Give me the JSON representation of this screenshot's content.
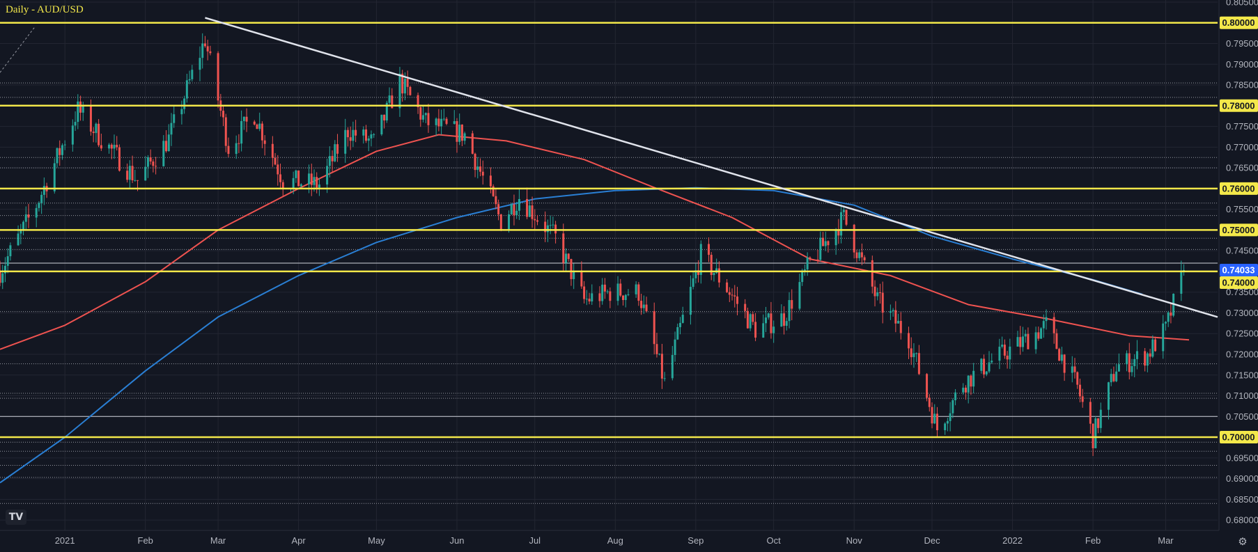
{
  "chart_data": {
    "type": "candlestick",
    "title": "Daily - AUD/USD",
    "ylim": [
      0.6775,
      0.8055
    ],
    "xlim": [
      "2020-12-07",
      "2022-03-21"
    ],
    "y_ticks": [
      "0.80500",
      "0.80000",
      "0.79500",
      "0.79000",
      "0.78500",
      "0.78000",
      "0.77500",
      "0.77000",
      "0.76500",
      "0.76000",
      "0.75500",
      "0.75000",
      "0.74500",
      "0.74000",
      "0.73500",
      "0.73000",
      "0.72500",
      "0.72000",
      "0.71500",
      "0.71000",
      "0.70500",
      "0.70000",
      "0.69500",
      "0.69000",
      "0.68500",
      "0.68000"
    ],
    "x_ticks": [
      {
        "label": "2021",
        "date": "2021-01-01"
      },
      {
        "label": "Feb",
        "date": "2021-02-01"
      },
      {
        "label": "Mar",
        "date": "2021-03-01"
      },
      {
        "label": "Apr",
        "date": "2021-04-01"
      },
      {
        "label": "May",
        "date": "2021-05-01"
      },
      {
        "label": "Jun",
        "date": "2021-06-01"
      },
      {
        "label": "Jul",
        "date": "2021-07-01"
      },
      {
        "label": "Aug",
        "date": "2021-08-01"
      },
      {
        "label": "Sep",
        "date": "2021-09-01"
      },
      {
        "label": "Oct",
        "date": "2021-10-01"
      },
      {
        "label": "Nov",
        "date": "2021-11-01"
      },
      {
        "label": "Dec",
        "date": "2021-12-01"
      },
      {
        "label": "2022",
        "date": "2022-01-01"
      },
      {
        "label": "Feb",
        "date": "2022-02-01"
      },
      {
        "label": "Mar",
        "date": "2022-03-01"
      }
    ],
    "horizontal_levels": [
      {
        "value": 0.8,
        "label": "0.80000",
        "style": "yellow"
      },
      {
        "value": 0.78,
        "label": "0.78000",
        "style": "yellow"
      },
      {
        "value": 0.76,
        "label": "0.76000",
        "style": "yellow"
      },
      {
        "value": 0.75,
        "label": "0.75000",
        "style": "yellow"
      },
      {
        "value": 0.74,
        "label": "0.74000",
        "style": "yellow"
      },
      {
        "value": 0.7,
        "label": "0.70000",
        "style": "yellow"
      }
    ],
    "white_levels": [
      0.742,
      0.705
    ],
    "dotted_levels": [
      0.7855,
      0.782,
      0.7675,
      0.765,
      0.7565,
      0.7535,
      0.748,
      0.7453,
      0.7303,
      0.7177,
      0.7106,
      0.7094,
      0.6988,
      0.6966,
      0.6932,
      0.6903,
      0.684
    ],
    "current_price": {
      "value": 0.74033,
      "label": "0.74033"
    },
    "trendline": {
      "start": {
        "date": "2021-02-24",
        "value": 0.8012
      },
      "end": {
        "date": "2022-03-21",
        "value": 0.729
      }
    },
    "close_series": [
      {
        "date": "2020-12-07",
        "value": 0.74
      },
      {
        "date": "2020-12-21",
        "value": 0.756
      },
      {
        "date": "2021-01-06",
        "value": 0.779
      },
      {
        "date": "2021-01-15",
        "value": 0.772
      },
      {
        "date": "2021-01-29",
        "value": 0.762
      },
      {
        "date": "2021-02-10",
        "value": 0.772
      },
      {
        "date": "2021-02-24",
        "value": 0.796
      },
      {
        "date": "2021-03-05",
        "value": 0.77
      },
      {
        "date": "2021-03-15",
        "value": 0.778
      },
      {
        "date": "2021-03-26",
        "value": 0.762
      },
      {
        "date": "2021-04-09",
        "value": 0.761
      },
      {
        "date": "2021-04-20",
        "value": 0.774
      },
      {
        "date": "2021-04-30",
        "value": 0.771
      },
      {
        "date": "2021-05-10",
        "value": 0.786
      },
      {
        "date": "2021-05-20",
        "value": 0.776
      },
      {
        "date": "2021-06-04",
        "value": 0.773
      },
      {
        "date": "2021-06-18",
        "value": 0.752
      },
      {
        "date": "2021-06-25",
        "value": 0.758
      },
      {
        "date": "2021-07-09",
        "value": 0.748
      },
      {
        "date": "2021-07-20",
        "value": 0.733
      },
      {
        "date": "2021-07-30",
        "value": 0.735
      },
      {
        "date": "2021-08-10",
        "value": 0.735
      },
      {
        "date": "2021-08-20",
        "value": 0.713
      },
      {
        "date": "2021-09-03",
        "value": 0.744
      },
      {
        "date": "2021-09-13",
        "value": 0.736
      },
      {
        "date": "2021-09-24",
        "value": 0.726
      },
      {
        "date": "2021-10-05",
        "value": 0.729
      },
      {
        "date": "2021-10-15",
        "value": 0.742
      },
      {
        "date": "2021-10-28",
        "value": 0.753
      },
      {
        "date": "2021-11-10",
        "value": 0.733
      },
      {
        "date": "2021-11-22",
        "value": 0.724
      },
      {
        "date": "2021-12-03",
        "value": 0.702
      },
      {
        "date": "2021-12-13",
        "value": 0.713
      },
      {
        "date": "2021-12-23",
        "value": 0.718
      },
      {
        "date": "2022-01-05",
        "value": 0.723
      },
      {
        "date": "2022-01-14",
        "value": 0.727
      },
      {
        "date": "2022-01-26",
        "value": 0.712
      },
      {
        "date": "2022-02-01",
        "value": 0.7
      },
      {
        "date": "2022-02-10",
        "value": 0.717
      },
      {
        "date": "2022-02-22",
        "value": 0.72
      },
      {
        "date": "2022-03-01",
        "value": 0.726
      },
      {
        "date": "2022-03-08",
        "value": 0.7403
      }
    ],
    "sma_fast": {
      "color": "#ef5350",
      "points": [
        {
          "date": "2020-12-07",
          "value": 0.7212
        },
        {
          "date": "2021-01-01",
          "value": 0.727
        },
        {
          "date": "2021-02-01",
          "value": 0.7375
        },
        {
          "date": "2021-03-01",
          "value": 0.75
        },
        {
          "date": "2021-04-01",
          "value": 0.76
        },
        {
          "date": "2021-05-01",
          "value": 0.769
        },
        {
          "date": "2021-05-25",
          "value": 0.773
        },
        {
          "date": "2021-06-20",
          "value": 0.7715
        },
        {
          "date": "2021-07-20",
          "value": 0.767
        },
        {
          "date": "2021-08-15",
          "value": 0.7605
        },
        {
          "date": "2021-09-15",
          "value": 0.753
        },
        {
          "date": "2021-10-15",
          "value": 0.743
        },
        {
          "date": "2021-11-15",
          "value": 0.739
        },
        {
          "date": "2021-12-15",
          "value": 0.732
        },
        {
          "date": "2022-01-15",
          "value": 0.7285
        },
        {
          "date": "2022-02-15",
          "value": 0.7245
        },
        {
          "date": "2022-03-10",
          "value": 0.7235
        }
      ]
    },
    "sma_slow": {
      "color": "#2a7fd4",
      "points": [
        {
          "date": "2020-12-07",
          "value": 0.689
        },
        {
          "date": "2021-01-01",
          "value": 0.7
        },
        {
          "date": "2021-02-01",
          "value": 0.716
        },
        {
          "date": "2021-03-01",
          "value": 0.729
        },
        {
          "date": "2021-04-01",
          "value": 0.739
        },
        {
          "date": "2021-05-01",
          "value": 0.747
        },
        {
          "date": "2021-06-01",
          "value": 0.753
        },
        {
          "date": "2021-07-01",
          "value": 0.7575
        },
        {
          "date": "2021-08-01",
          "value": 0.7595
        },
        {
          "date": "2021-09-01",
          "value": 0.7602
        },
        {
          "date": "2021-10-01",
          "value": 0.7595
        },
        {
          "date": "2021-11-01",
          "value": 0.756
        },
        {
          "date": "2021-12-01",
          "value": 0.7485
        },
        {
          "date": "2022-01-01",
          "value": 0.743
        },
        {
          "date": "2022-02-01",
          "value": 0.738
        },
        {
          "date": "2022-02-20",
          "value": 0.7345
        }
      ]
    },
    "colors": {
      "background": "#131722",
      "grid": "#232632",
      "up": "#26a69a",
      "down": "#ef5350",
      "level": "#f3e84a",
      "trendline": "#e0e3eb",
      "axis_text": "#b2b5be",
      "current_price_bg": "#2962ff"
    },
    "grid": true
  },
  "ui": {
    "logo_icon": "tradingview-logo",
    "logo_text": "TV",
    "settings_icon": "gear-icon"
  }
}
